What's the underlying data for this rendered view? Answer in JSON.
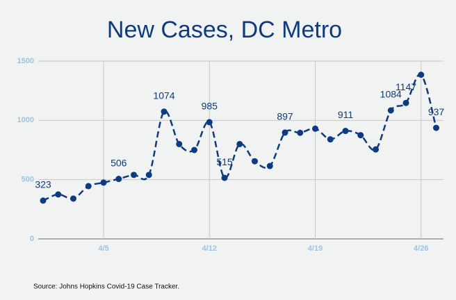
{
  "chart_data": {
    "type": "line",
    "title": "New Cases, DC Metro",
    "source": "Source: Johns Hopkins Covid-19 Case Tracker.",
    "categories": [
      null,
      null,
      null,
      null,
      "4/5",
      null,
      null,
      null,
      null,
      null,
      null,
      "4/12",
      null,
      null,
      null,
      null,
      null,
      null,
      "4/19",
      null,
      null,
      null,
      null,
      null,
      null,
      "4/26",
      null
    ],
    "series": [
      {
        "name": "New Cases",
        "color": "#0d3a84",
        "values": [
          323,
          375,
          340,
          445,
          475,
          506,
          540,
          540,
          1074,
          800,
          750,
          985,
          515,
          800,
          655,
          615,
          897,
          895,
          930,
          840,
          911,
          875,
          755,
          1084,
          1147,
          1385,
          937
        ],
        "value_labels": [
          "323",
          null,
          null,
          null,
          null,
          "506",
          null,
          null,
          "1074",
          null,
          null,
          "985",
          "515",
          null,
          null,
          null,
          "897",
          null,
          null,
          null,
          "911",
          null,
          null,
          "1084",
          "1147",
          null,
          "937"
        ]
      }
    ],
    "ylim": [
      0,
      1500
    ],
    "yticks": [
      0,
      500,
      1000,
      1500
    ],
    "grid": true
  }
}
